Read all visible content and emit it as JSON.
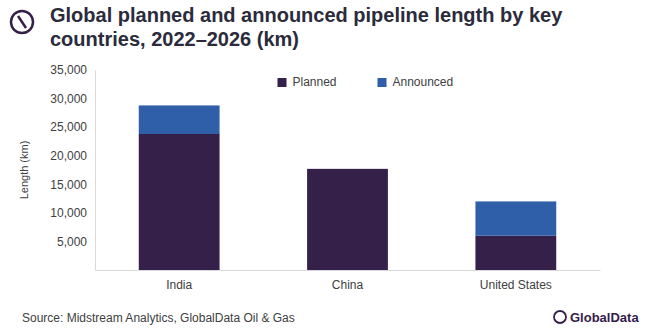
{
  "chart_data": {
    "type": "bar",
    "title": "Global planned and announced pipeline length by key countries, 2022–2026 (km)",
    "y_label": "Length (km)",
    "source": "Source: Midstream Analytics, GlobalData Oil & Gas",
    "brand": "GlobalData",
    "categories": [
      "India",
      "China",
      "United States"
    ],
    "series": [
      {
        "name": "Planned",
        "color": "#35204a",
        "values": [
          23800,
          17700,
          6000
        ]
      },
      {
        "name": "Announced",
        "color": "#2e5fa8",
        "values": [
          5000,
          0,
          6000
        ]
      }
    ],
    "stacked": true,
    "legend": "top",
    "grid": false,
    "ylim": [
      0,
      35000
    ],
    "yticks": [
      {
        "value": 5000,
        "label": "5,000"
      },
      {
        "value": 10000,
        "label": "10,000"
      },
      {
        "value": 15000,
        "label": "15,000"
      },
      {
        "value": 20000,
        "label": "20,000"
      },
      {
        "value": 25000,
        "label": "25,000"
      },
      {
        "value": 30000,
        "label": "30,000"
      },
      {
        "value": 35000,
        "label": "35,000"
      }
    ]
  }
}
